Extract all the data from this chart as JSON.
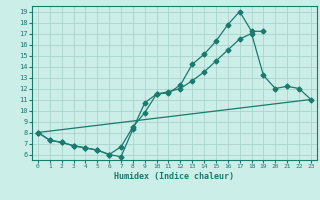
{
  "xlabel": "Humidex (Indice chaleur)",
  "bg_color": "#cceee8",
  "grid_color": "#aad4cc",
  "line_color": "#1a7a6e",
  "xlim": [
    -0.5,
    23.5
  ],
  "ylim": [
    5.5,
    19.5
  ],
  "xticks": [
    0,
    1,
    2,
    3,
    4,
    5,
    6,
    7,
    8,
    9,
    10,
    11,
    12,
    13,
    14,
    15,
    16,
    17,
    18,
    19,
    20,
    21,
    22,
    23
  ],
  "yticks": [
    6,
    7,
    8,
    9,
    10,
    11,
    12,
    13,
    14,
    15,
    16,
    17,
    18,
    19
  ],
  "line1_x": [
    0,
    1,
    2,
    3,
    4,
    5,
    6,
    7,
    8,
    9,
    10,
    11,
    12,
    13,
    14,
    15,
    16,
    17,
    18,
    19
  ],
  "line1_y": [
    8.0,
    7.3,
    7.1,
    6.8,
    6.6,
    6.4,
    6.0,
    5.8,
    8.3,
    10.7,
    11.5,
    11.6,
    12.3,
    14.2,
    15.1,
    16.3,
    17.8,
    19.0,
    17.2,
    17.2
  ],
  "line2_x": [
    0,
    1,
    2,
    3,
    4,
    5,
    6,
    7,
    8,
    9,
    10,
    11,
    12,
    13,
    14,
    15,
    16,
    17,
    18,
    19,
    20,
    21,
    22,
    23
  ],
  "line2_y": [
    8.0,
    7.3,
    7.1,
    6.8,
    6.6,
    6.4,
    6.0,
    6.7,
    8.5,
    9.8,
    11.5,
    11.7,
    12.0,
    12.7,
    13.5,
    14.5,
    15.5,
    16.5,
    17.0,
    13.2,
    12.0,
    12.2,
    12.0,
    11.0
  ],
  "line3_x": [
    0,
    23
  ],
  "line3_y": [
    8.0,
    11.0
  ]
}
